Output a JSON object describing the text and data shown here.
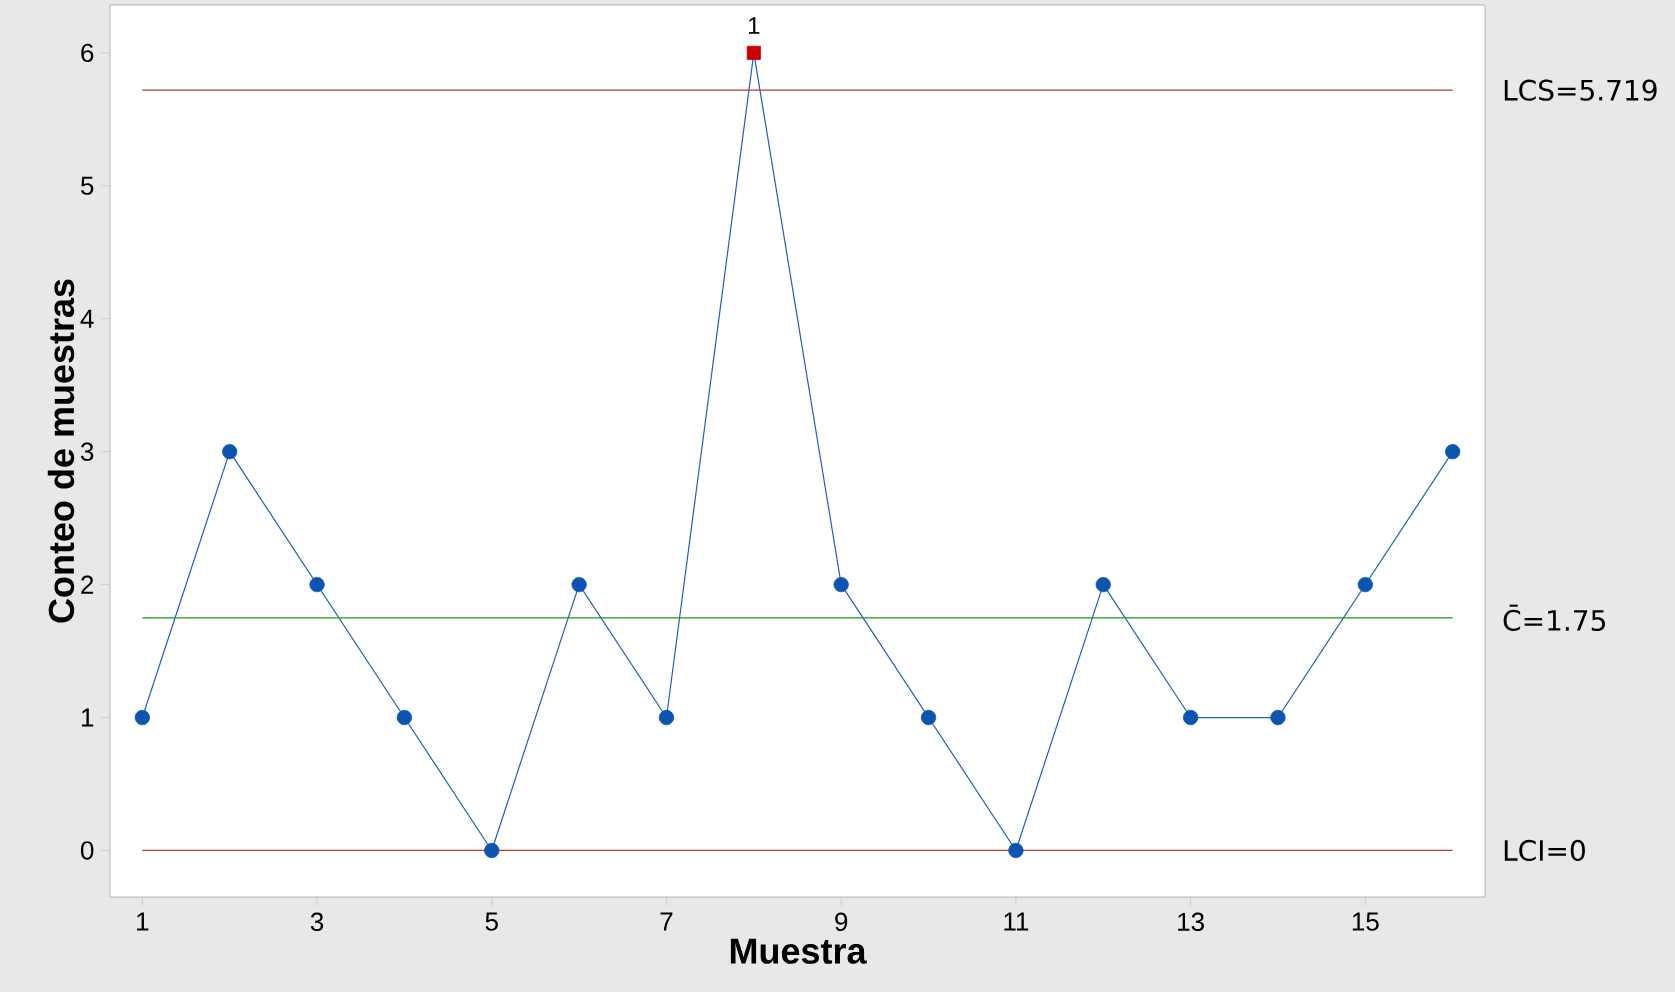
{
  "chart_data": {
    "type": "line",
    "xlabel": "Muestra",
    "ylabel": "Conteo de muestras",
    "x": [
      1,
      2,
      3,
      4,
      5,
      6,
      7,
      8,
      9,
      10,
      11,
      12,
      13,
      14,
      15,
      16
    ],
    "series": [
      {
        "type": "line",
        "color": "#1f5fbf",
        "marker": "none",
        "values": [
          1,
          3,
          2,
          1,
          0,
          2,
          1,
          6,
          2,
          1,
          0,
          2,
          1,
          1,
          2,
          3
        ]
      },
      {
        "type": "scatter",
        "color": "#0b55b0",
        "marker": "circle",
        "x": [
          1,
          2,
          3,
          4,
          5,
          6,
          7,
          9,
          10,
          11,
          12,
          13,
          14,
          15,
          16
        ],
        "values": [
          1,
          3,
          2,
          1,
          0,
          2,
          1,
          2,
          1,
          0,
          2,
          1,
          1,
          2,
          3
        ]
      },
      {
        "type": "scatter",
        "color": "#cc0000",
        "marker": "square",
        "x": [
          8
        ],
        "values": [
          6
        ]
      }
    ],
    "xlim": [
      0.63,
      16.37
    ],
    "ylim": [
      -0.35,
      6.36
    ],
    "xticks": [
      1,
      3,
      5,
      7,
      9,
      11,
      13,
      15
    ],
    "yticks": [
      0,
      1,
      2,
      3,
      4,
      5,
      6
    ],
    "ref_lines": [
      {
        "axis": "y",
        "value": 5.719,
        "label": "LCS=5.719",
        "color": "#c0392b"
      },
      {
        "axis": "y",
        "value": 1.75,
        "label": "C̄=1.75",
        "color": "#1a9a1a"
      },
      {
        "axis": "y",
        "value": 0,
        "label": "LCI=0",
        "color": "#c0392b"
      }
    ],
    "annotations": [
      {
        "text": "1",
        "x": 8,
        "y": 6
      }
    ],
    "grid": false
  }
}
